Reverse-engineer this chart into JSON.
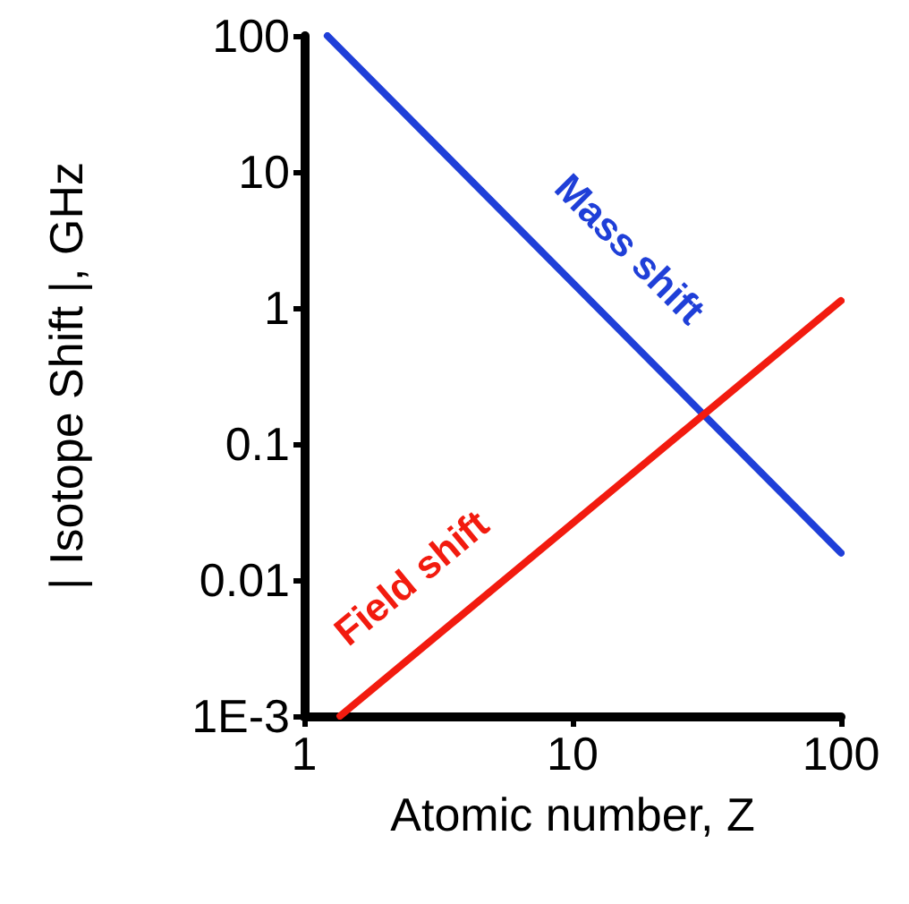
{
  "chart_data": {
    "type": "line",
    "xlabel": "Atomic number, Z",
    "ylabel": "| Isotope Shift |, GHz",
    "log": "xy",
    "xlim": [
      1,
      100
    ],
    "xticks": [
      1,
      10,
      100
    ],
    "ylim": [
      0.001,
      100
    ],
    "yticks": [
      {
        "value": 0.001,
        "label": "1E-3"
      },
      0.01,
      0.1,
      1,
      10,
      100
    ],
    "grid": false,
    "legend": false,
    "marker": "none",
    "line_style": "solid",
    "series": [
      {
        "name": "Mass shift",
        "color": "#1f3fd8",
        "x": [
          1.22,
          100
        ],
        "values": [
          100,
          0.0158
        ]
      },
      {
        "name": "Field shift",
        "color": "#f21b0f",
        "x": [
          1.36,
          100
        ],
        "values": [
          0.001,
          1.13
        ]
      }
    ]
  }
}
